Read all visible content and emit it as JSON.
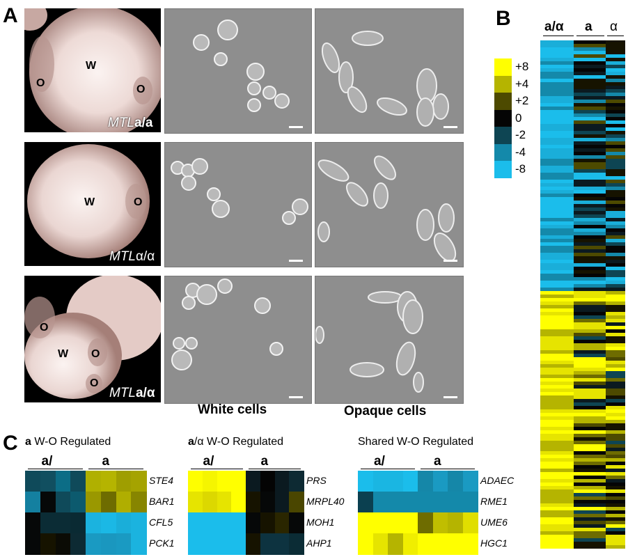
{
  "panel_letters": {
    "a": "A",
    "b": "B",
    "c": "C"
  },
  "panel_a": {
    "rows": [
      {
        "regions": [
          "O",
          "W",
          "O"
        ],
        "label_prefix": "MTL",
        "label_suffix": "a/a"
      },
      {
        "regions": [
          "W",
          "O"
        ],
        "label_prefix": "MTL",
        "label_suffix": "α/α"
      },
      {
        "regions": [
          "O",
          "W",
          "O",
          "O"
        ],
        "label_prefix": "MTL",
        "label_suffix": "a/α"
      }
    ],
    "captions": {
      "white": "White cells",
      "opaque": "Opaque cells"
    }
  },
  "panel_b": {
    "column_headers": [
      "a/α",
      "a",
      "α"
    ],
    "legend": [
      {
        "label": "+8",
        "color": "#ffff00"
      },
      {
        "label": "+4",
        "color": "#b5b400"
      },
      {
        "label": "+2",
        "color": "#4d4a00"
      },
      {
        "label": "0",
        "color": "#050505"
      },
      {
        "label": "-2",
        "color": "#0e4553"
      },
      {
        "label": "-4",
        "color": "#1489aa"
      },
      {
        "label": "-8",
        "color": "#1bbdeb"
      }
    ]
  },
  "panel_c": {
    "groups": [
      {
        "title_bold": "a",
        "title_rest": " W-O Regulated",
        "col_groups": [
          "a/α",
          "a"
        ],
        "genes": [
          "STE4",
          "BAR1",
          "CFL5",
          "PCK1"
        ],
        "cells": [
          [
            "#0f4a5a",
            "#114f60",
            "#0c6d86",
            "#0f4a5a",
            "#b0b000",
            "#b5b400",
            "#9f9e00",
            "#a5a300"
          ],
          [
            "#1480a0",
            "#060808",
            "#0f4a5a",
            "#0c5a6e",
            "#9a9800",
            "#6e6c00",
            "#b0ae00",
            "#878500"
          ],
          [
            "#060808",
            "#0b2c35",
            "#0b2c35",
            "#0a2a33",
            "#1bb3df",
            "#1bb8e5",
            "#1aaed9",
            "#1bb3df"
          ],
          [
            "#060808",
            "#161300",
            "#0b0b05",
            "#0d2a33",
            "#1a9ac2",
            "#1a97bf",
            "#1a9ac2",
            "#1bb3df"
          ]
        ]
      },
      {
        "title_bold": "a",
        "title_rest": "/α W-O Regulated",
        "col_groups": [
          "a/α",
          "a"
        ],
        "genes": [
          "PRS",
          "MRPL40",
          "MOH1",
          "AHP1"
        ],
        "cells": [
          [
            "#fefe00",
            "#f5f500",
            "#ffff00",
            "#ffff00",
            "#0b1a20",
            "#040404",
            "#0b1a20",
            "#0d2a33"
          ],
          [
            "#e6e400",
            "#dcd800",
            "#e6e400",
            "#ffff00",
            "#161300",
            "#060808",
            "#0b1a20",
            "#4a4600"
          ],
          [
            "#1bbdeb",
            "#1bbdeb",
            "#1bbdeb",
            "#1bbdeb",
            "#060808",
            "#161300",
            "#2a2600",
            "#060808"
          ],
          [
            "#1bbdeb",
            "#1bbdeb",
            "#1bbdeb",
            "#1bbdeb",
            "#161300",
            "#0d3340",
            "#0d3340",
            "#0b2c35"
          ]
        ]
      },
      {
        "title_bold": "",
        "title_rest": "Shared W-O Regulated",
        "col_groups": [
          "a/α",
          "a"
        ],
        "genes": [
          "ADAEC",
          "RME1",
          "UME6",
          "HGC1"
        ],
        "cells": [
          [
            "#1bbdeb",
            "#1ab6e2",
            "#1ab6e2",
            "#1bbdeb",
            "#1587a8",
            "#1a9ac2",
            "#1587a8",
            "#1a9ac2"
          ],
          [
            "#0b4050",
            "#1489aa",
            "#1489aa",
            "#1489aa",
            "#1489aa",
            "#1489aa",
            "#1489aa",
            "#1489aa"
          ],
          [
            "#ffff00",
            "#ffff00",
            "#ffff00",
            "#ffff00",
            "#6e6c00",
            "#c0be00",
            "#b5b400",
            "#e0de00"
          ],
          [
            "#ffff00",
            "#e6e400",
            "#b5b400",
            "#f0ee00",
            "#ffff00",
            "#ffff00",
            "#ffff00",
            "#ffff00"
          ]
        ]
      }
    ]
  }
}
